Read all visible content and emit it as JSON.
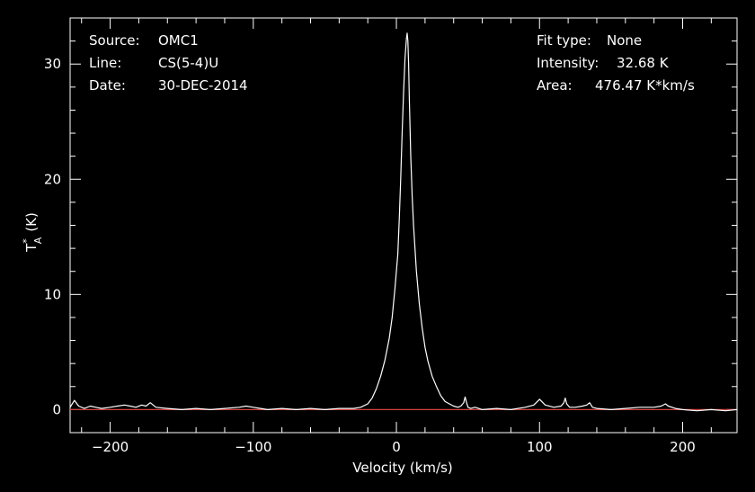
{
  "info_left": [
    {
      "key": "Source:",
      "value": "OMC1"
    },
    {
      "key": "Line:",
      "value": "CS(5-4)U"
    },
    {
      "key": "Date:",
      "value": "30-DEC-2014"
    }
  ],
  "info_right": [
    {
      "key": "Fit type:",
      "value": "None"
    },
    {
      "key": "Intensity:",
      "value": "32.68 K"
    },
    {
      "key": "Area:",
      "value": "476.47 K*km/s"
    }
  ],
  "colors": {
    "background": "#000000",
    "axes": "#ffffff",
    "spectrum": "#ffffff",
    "baseline": "#d04040"
  },
  "chart_data": {
    "type": "line",
    "title": "",
    "xlabel": "Velocity (km/s)",
    "ylabel_main": "T",
    "ylabel_sup": "*",
    "ylabel_sub": "A",
    "ylabel_unit": "(K)",
    "xlim": [
      -228,
      238
    ],
    "ylim": [
      -2,
      34
    ],
    "x_ticks": [
      -200,
      -100,
      0,
      100,
      200
    ],
    "x_tick_labels": [
      "−200",
      "−100",
      "0",
      "100",
      "200"
    ],
    "y_ticks": [
      0,
      10,
      20,
      30
    ],
    "y_tick_labels": [
      "0",
      "10",
      "20",
      "30"
    ],
    "baseline": 0,
    "grid": false,
    "series": [
      {
        "x": [
          -228,
          -225,
          -222,
          -218,
          -214,
          -210,
          -206,
          -200,
          -195,
          -190,
          -186,
          -182,
          -178,
          -175,
          -172,
          -168,
          -160,
          -150,
          -140,
          -130,
          -120,
          -110,
          -105,
          -100,
          -95,
          -90,
          -80,
          -70,
          -60,
          -50,
          -40,
          -30,
          -25,
          -20,
          -17,
          -14,
          -11,
          -8,
          -5,
          -3,
          -1,
          1,
          2,
          3,
          4,
          5,
          6,
          7,
          7.5,
          8,
          8.5,
          9,
          10,
          11,
          12,
          14,
          16,
          18,
          20,
          22,
          25,
          28,
          31,
          34,
          37,
          40,
          43,
          45,
          47,
          48,
          49,
          50,
          52,
          55,
          60,
          70,
          80,
          90,
          96,
          100,
          104,
          110,
          115,
          117,
          118,
          119,
          121,
          125,
          130,
          133,
          135,
          137,
          140,
          150,
          160,
          170,
          180,
          185,
          188,
          190,
          195,
          200,
          210,
          220,
          230,
          238
        ],
        "y": [
          0.2,
          0.8,
          0.3,
          0.1,
          0.3,
          0.2,
          0.1,
          0.2,
          0.3,
          0.4,
          0.3,
          0.2,
          0.4,
          0.3,
          0.6,
          0.2,
          0.1,
          0.0,
          0.1,
          0.0,
          0.1,
          0.2,
          0.3,
          0.2,
          0.1,
          0.0,
          0.1,
          0.0,
          0.1,
          0.0,
          0.1,
          0.1,
          0.2,
          0.5,
          1.0,
          1.8,
          2.9,
          4.3,
          6.2,
          8.0,
          10.5,
          13.5,
          16.5,
          20.0,
          24.0,
          27.5,
          30.5,
          32.2,
          32.68,
          32.0,
          30.0,
          27.0,
          22.0,
          18.5,
          16.0,
          12.0,
          9.2,
          7.1,
          5.4,
          4.2,
          2.9,
          2.0,
          1.2,
          0.7,
          0.5,
          0.3,
          0.2,
          0.3,
          0.6,
          1.1,
          0.6,
          0.2,
          0.1,
          0.2,
          0.0,
          0.1,
          0.0,
          0.2,
          0.4,
          0.9,
          0.4,
          0.2,
          0.3,
          0.6,
          1.0,
          0.5,
          0.2,
          0.2,
          0.3,
          0.4,
          0.6,
          0.2,
          0.1,
          0.0,
          0.1,
          0.2,
          0.2,
          0.3,
          0.5,
          0.3,
          0.1,
          0.0,
          -0.1,
          0.0,
          -0.1,
          0.0
        ]
      }
    ]
  }
}
